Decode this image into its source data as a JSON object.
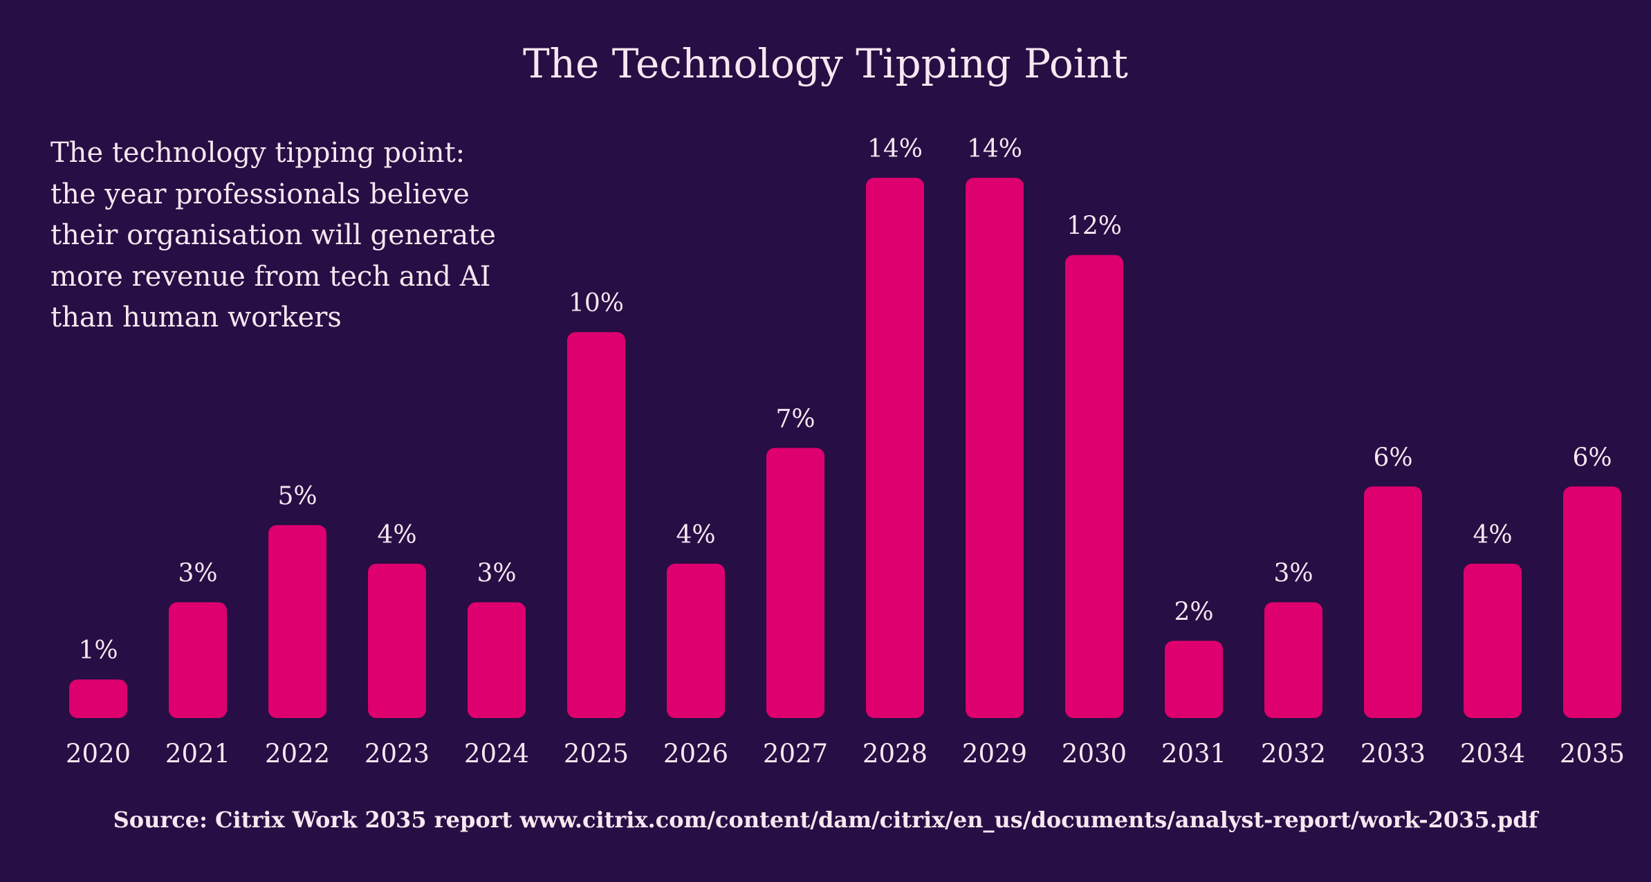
{
  "chart_data": {
    "type": "bar",
    "title": "The Technology Tipping Point",
    "subtitle": "The technology tipping point: the year professionals believe their organisation will generate more revenue from tech and AI than human workers",
    "categories": [
      "2020",
      "2021",
      "2022",
      "2023",
      "2024",
      "2025",
      "2026",
      "2027",
      "2028",
      "2029",
      "2030",
      "2031",
      "2032",
      "2033",
      "2034",
      "2035"
    ],
    "values": [
      1,
      3,
      5,
      4,
      3,
      10,
      4,
      7,
      14,
      14,
      12,
      2,
      3,
      6,
      4,
      6
    ],
    "value_labels": [
      "1%",
      "3%",
      "5%",
      "4%",
      "3%",
      "10%",
      "4%",
      "7%",
      "14%",
      "14%",
      "12%",
      "2%",
      "3%",
      "6%",
      "4%",
      "6%"
    ],
    "xlabel": "",
    "ylabel": "",
    "ylim": [
      0,
      14
    ],
    "grid": false,
    "colors": {
      "background": "#270e44",
      "bar": "#de006f",
      "text": "#f7e7f0"
    },
    "source": "Source: Citrix Work 2035 report www.citrix.com/content/dam/citrix/en_us/documents/analyst-report/work-2035.pdf"
  }
}
